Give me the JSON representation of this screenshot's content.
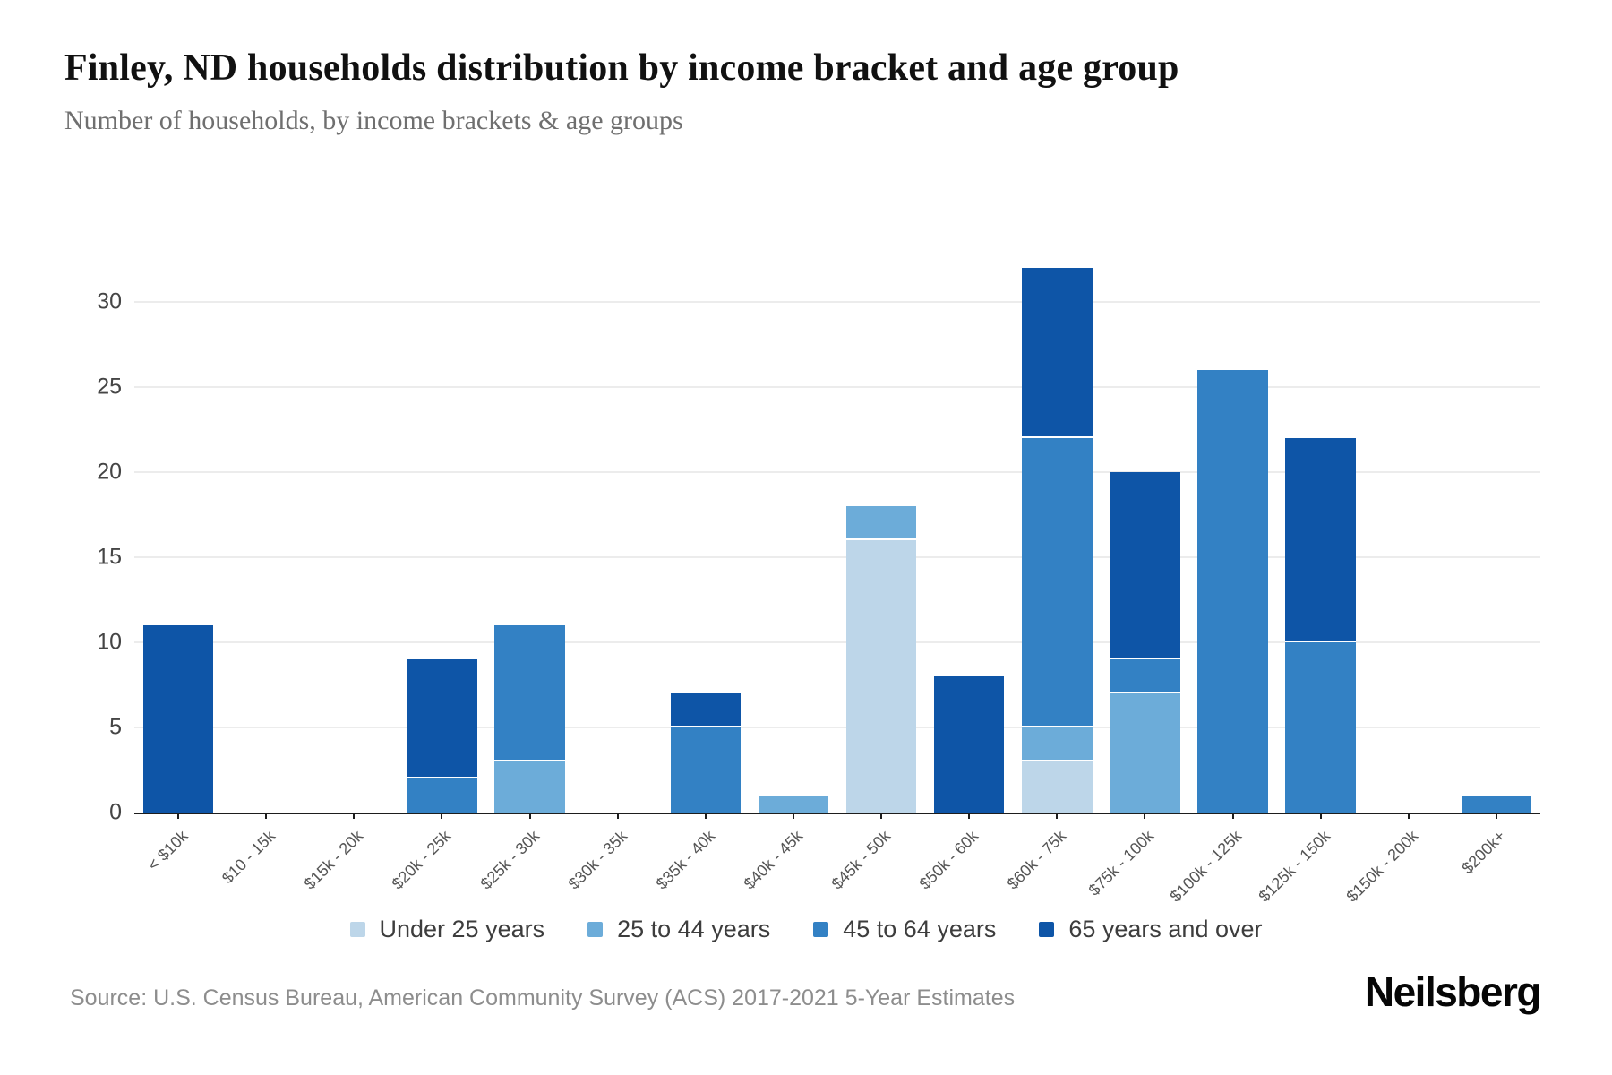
{
  "header": {
    "title": "Finley, ND households distribution by income bracket and age group",
    "subtitle": "Number of households, by income brackets & age groups"
  },
  "chart_data": {
    "type": "bar",
    "stacked": true,
    "orientation": "vertical",
    "categories": [
      "< $10k",
      "$10 - 15k",
      "$15k - 20k",
      "$20k - 25k",
      "$25k - 30k",
      "$30k - 35k",
      "$35k - 40k",
      "$40k - 45k",
      "$45k - 50k",
      "$50k - 60k",
      "$60k - 75k",
      "$75k - 100k",
      "$100k - 125k",
      "$125k - 150k",
      "$150k - 200k",
      "$200k+"
    ],
    "series": [
      {
        "name": "Under 25 years",
        "color": "#bdd6e9",
        "values": [
          0,
          0,
          0,
          0,
          0,
          0,
          0,
          0,
          16,
          0,
          3,
          0,
          0,
          0,
          0,
          0
        ]
      },
      {
        "name": "25 to 44 years",
        "color": "#6cacd9",
        "values": [
          0,
          0,
          0,
          0,
          3,
          0,
          0,
          1,
          2,
          0,
          2,
          7,
          0,
          0,
          0,
          0
        ]
      },
      {
        "name": "45 to 64 years",
        "color": "#3381c4",
        "values": [
          0,
          0,
          0,
          2,
          8,
          0,
          5,
          0,
          0,
          0,
          17,
          2,
          26,
          10,
          0,
          1
        ]
      },
      {
        "name": "65 years and over",
        "color": "#0e55a7",
        "values": [
          11,
          0,
          0,
          7,
          0,
          0,
          2,
          0,
          0,
          8,
          10,
          11,
          0,
          12,
          0,
          0
        ]
      }
    ],
    "totals": [
      11,
      0,
      0,
      9,
      11,
      0,
      7,
      1,
      18,
      8,
      32,
      20,
      26,
      22,
      0,
      1
    ],
    "ylabel": "",
    "xlabel": "",
    "yticks": [
      0,
      5,
      10,
      15,
      20,
      25,
      30
    ],
    "ylim": [
      0,
      35.2
    ],
    "grid": "horizontal",
    "gridline_color": "#ececec",
    "axis_color": "#1d1d1d",
    "legend_position": "bottom"
  },
  "footer": {
    "source": "Source: U.S. Census Bureau, American Community Survey (ACS) 2017-2021 5-Year Estimates",
    "brand": "Neilsberg"
  }
}
